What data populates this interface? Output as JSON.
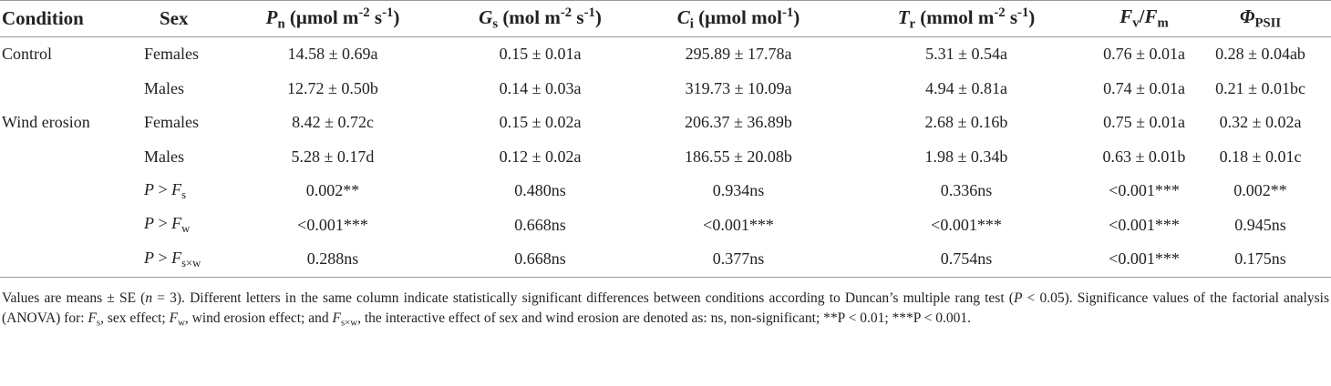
{
  "table": {
    "header": [
      [
        "Condition"
      ],
      [
        "Sex"
      ],
      [
        "P",
        "n",
        " (μmol m",
        "-2",
        " s",
        "-1",
        ")"
      ],
      [
        "G",
        "s",
        " (mol m",
        "-2",
        " s",
        "-1",
        ")"
      ],
      [
        "C",
        "i",
        " (μmol mol",
        "-1",
        ")"
      ],
      [
        "T",
        "r",
        " (mmol m",
        "-2",
        " s",
        "-1",
        ")"
      ],
      [
        "F",
        "v",
        "/",
        "F",
        "m"
      ],
      [
        "Φ",
        "PSII"
      ]
    ],
    "rows": [
      [
        "Control",
        "Females",
        "14.58 ± 0.69a",
        "0.15 ± 0.01a",
        "295.89 ± 17.78a",
        "5.31 ± 0.54a",
        "0.76 ± 0.01a",
        "0.28 ± 0.04ab"
      ],
      [
        "",
        "Males",
        "12.72 ± 0.50b",
        "0.14 ± 0.03a",
        "319.73 ± 10.09a",
        "4.94 ± 0.81a",
        "0.74 ± 0.01a",
        "0.21 ± 0.01bc"
      ],
      [
        "Wind erosion",
        "Females",
        "8.42 ± 0.72c",
        "0.15 ± 0.02a",
        "206.37 ± 36.89b",
        "2.68 ± 0.16b",
        "0.75 ± 0.01a",
        "0.32 ± 0.02a"
      ],
      [
        "",
        "Males",
        "5.28 ± 0.17d",
        "0.12 ± 0.02a",
        "186.55 ± 20.08b",
        "1.98 ± 0.34b",
        "0.63 ± 0.01b",
        "0.18 ± 0.01c"
      ]
    ],
    "stats": [
      {
        "label": [
          "P",
          " > ",
          "F",
          "s"
        ],
        "values": [
          "0.002**",
          "0.480ns",
          "0.934ns",
          "0.336ns",
          "<0.001***",
          "0.002**"
        ]
      },
      {
        "label": [
          "P",
          " > ",
          "F",
          "w"
        ],
        "values": [
          "<0.001***",
          "0.668ns",
          "<0.001***",
          "<0.001***",
          "<0.001***",
          "0.945ns"
        ]
      },
      {
        "label": [
          "P",
          " > ",
          "F",
          "s×w"
        ],
        "values": [
          "0.288ns",
          "0.668ns",
          "0.377ns",
          "0.754ns",
          "<0.001***",
          "0.175ns"
        ]
      }
    ]
  },
  "footnote": [
    "Values are means ± SE (",
    "n",
    " = 3). Different letters in the same column indicate statistically significant differences between conditions according to Duncan’s multiple rang test (",
    "P",
    " < 0.05). Significance values of the factorial analysis (ANOVA) for: ",
    "F",
    "s",
    ", sex effect; ",
    "F",
    "w",
    ", wind erosion effect; and ",
    "F",
    "s×w",
    ", the interactive effect of sex and wind erosion are denoted as: ns, non-significant; **P < 0.01; ***P < 0.001."
  ]
}
